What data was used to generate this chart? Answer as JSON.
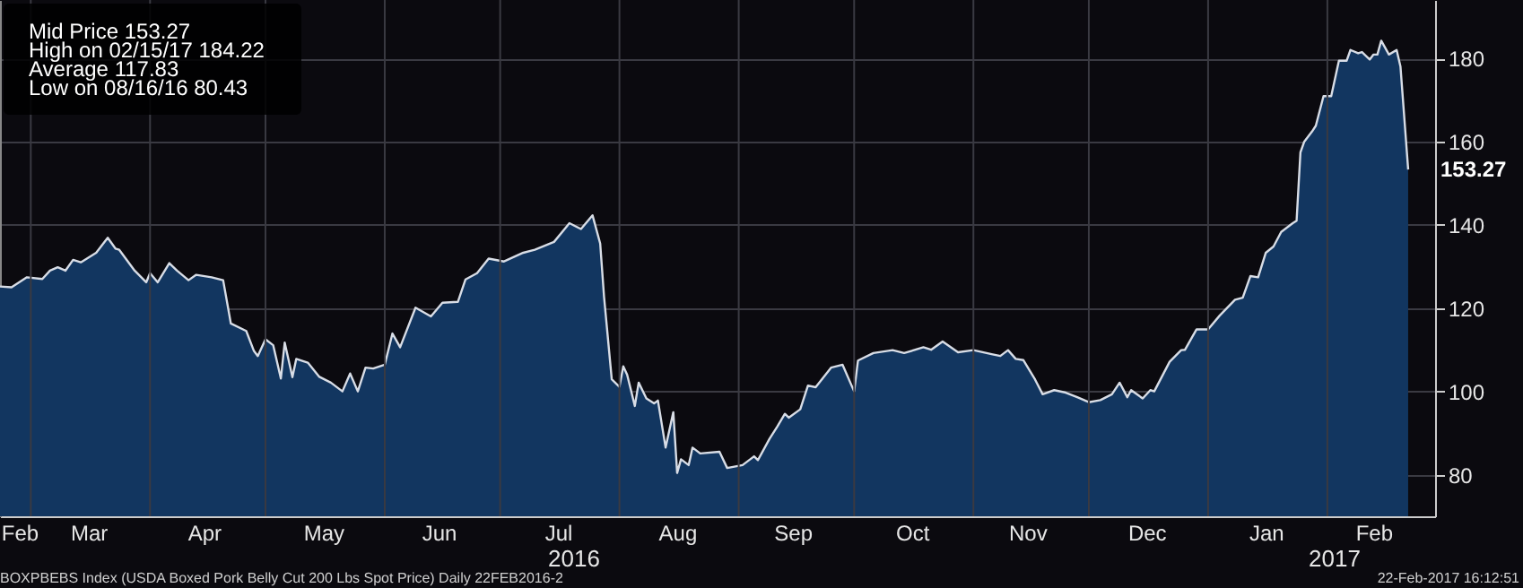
{
  "chart_data": {
    "type": "area",
    "x": [
      "2016-02-22",
      "2016-02-25",
      "2016-02-29",
      "2016-03-04",
      "2016-03-06",
      "2016-03-08",
      "2016-03-10",
      "2016-03-12",
      "2016-03-14",
      "2016-03-18",
      "2016-03-21",
      "2016-03-23",
      "2016-03-24",
      "2016-03-28",
      "2016-03-31",
      "2016-04-01",
      "2016-04-03",
      "2016-04-06",
      "2016-04-08",
      "2016-04-11",
      "2016-04-13",
      "2016-04-17",
      "2016-04-20",
      "2016-04-22",
      "2016-04-26",
      "2016-04-28",
      "2016-04-29",
      "2016-05-01",
      "2016-05-03",
      "2016-05-05",
      "2016-05-06",
      "2016-05-08",
      "2016-05-09",
      "2016-05-12",
      "2016-05-15",
      "2016-05-18",
      "2016-05-21",
      "2016-05-23",
      "2016-05-25",
      "2016-05-27",
      "2016-05-29",
      "2016-06-01",
      "2016-06-03",
      "2016-06-05",
      "2016-06-09",
      "2016-06-13",
      "2016-06-16",
      "2016-06-20",
      "2016-06-22",
      "2016-06-25",
      "2016-06-28",
      "2016-07-02",
      "2016-07-07",
      "2016-07-10",
      "2016-07-15",
      "2016-07-19",
      "2016-07-22",
      "2016-07-25",
      "2016-07-27",
      "2016-07-28",
      "2016-07-30",
      "2016-08-01",
      "2016-08-02",
      "2016-08-03",
      "2016-08-05",
      "2016-08-06",
      "2016-08-08",
      "2016-08-10",
      "2016-08-11",
      "2016-08-13",
      "2016-08-15",
      "2016-08-16",
      "2016-08-17",
      "2016-08-19",
      "2016-08-20",
      "2016-08-22",
      "2016-08-27",
      "2016-08-29",
      "2016-09-02",
      "2016-09-05",
      "2016-09-06",
      "2016-09-09",
      "2016-09-11",
      "2016-09-13",
      "2016-09-14",
      "2016-09-17",
      "2016-09-19",
      "2016-09-21",
      "2016-09-25",
      "2016-09-28",
      "2016-10-01",
      "2016-10-02",
      "2016-10-06",
      "2016-10-11",
      "2016-10-14",
      "2016-10-19",
      "2016-10-21",
      "2016-10-24",
      "2016-10-28",
      "2016-11-01",
      "2016-11-06",
      "2016-11-08",
      "2016-11-10",
      "2016-11-12",
      "2016-11-14",
      "2016-11-17",
      "2016-11-19",
      "2016-11-22",
      "2016-11-25",
      "2016-11-28",
      "2016-12-01",
      "2016-12-04",
      "2016-12-07",
      "2016-12-09",
      "2016-12-11",
      "2016-12-12",
      "2016-12-15",
      "2016-12-17",
      "2016-12-18",
      "2016-12-22",
      "2016-12-25",
      "2016-12-26",
      "2016-12-29",
      "2017-01-01",
      "2017-01-04",
      "2017-01-08",
      "2017-01-10",
      "2017-01-12",
      "2017-01-14",
      "2017-01-16",
      "2017-01-18",
      "2017-01-20",
      "2017-01-23",
      "2017-01-24",
      "2017-01-25",
      "2017-01-26",
      "2017-01-28",
      "2017-01-29",
      "2017-01-31",
      "2017-02-02",
      "2017-02-04",
      "2017-02-06",
      "2017-02-07",
      "2017-02-09",
      "2017-02-10",
      "2017-02-12",
      "2017-02-13",
      "2017-02-14",
      "2017-02-15",
      "2017-02-17",
      "2017-02-19",
      "2017-02-20",
      "2017-02-22"
    ],
    "series": [
      {
        "name": "Mid Price",
        "color": "#123660",
        "values": [
          125.2,
          125,
          127.4,
          127,
          129,
          129.8,
          129,
          131.6,
          131,
          133.3,
          136.9,
          134.3,
          134,
          129,
          126.2,
          128.4,
          126.2,
          130.8,
          129,
          126.7,
          128,
          127.4,
          126.7,
          116.3,
          114.5,
          109.7,
          108.5,
          112.5,
          111.1,
          103.1,
          111.7,
          103.4,
          107.8,
          106.9,
          103.5,
          102.1,
          100,
          104.3,
          100,
          105.7,
          105.5,
          106.4,
          113.9,
          110.6,
          120.1,
          118,
          121.3,
          121.5,
          126.9,
          128.4,
          131.9,
          131.2,
          133.3,
          134,
          135.9,
          140.4,
          139,
          142.3,
          135.5,
          122.7,
          102.9,
          101.1,
          106,
          104,
          96.5,
          102.1,
          98.3,
          97.1,
          97.8,
          86.5,
          95,
          80.43,
          83.7,
          82.3,
          86.5,
          85.1,
          85.5,
          81.6,
          82.3,
          84.4,
          83.5,
          88.6,
          91.5,
          94.6,
          93.7,
          95.7,
          101.4,
          101,
          105.7,
          106.4,
          100,
          107.4,
          109.2,
          109.9,
          109.2,
          110.6,
          110,
          112,
          109.4,
          109.9,
          108.9,
          108.5,
          109.9,
          107.8,
          107.5,
          102.9,
          99.3,
          100.3,
          99.7,
          98.6,
          97.4,
          97.9,
          99.3,
          102.1,
          98.6,
          100.3,
          98.3,
          100.3,
          100,
          107.1,
          109.9,
          110,
          114.9,
          114.9,
          118.2,
          122,
          122.5,
          127.7,
          127.4,
          133.3,
          134.8,
          138.3,
          140.4,
          141,
          157.4,
          160,
          162.4,
          163.8,
          170.9,
          170.9,
          179.4,
          179.4,
          182,
          181.2,
          181.5,
          179.7,
          180.9,
          180.9,
          184.22,
          180.9,
          182,
          178,
          153.27
        ]
      }
    ],
    "xlim": [
      "2016-02-22",
      "2017-03-01"
    ],
    "xticks": [
      {
        "value": "2016-02-27",
        "label": "Feb"
      },
      {
        "value": "2016-03-01",
        "label": null
      },
      {
        "value": "2016-03-16",
        "label": "Mar"
      },
      {
        "value": "2016-04-01",
        "label": null
      },
      {
        "value": "2016-04-15",
        "label": "Apr"
      },
      {
        "value": "2016-05-01",
        "label": null
      },
      {
        "value": "2016-05-16",
        "label": "May"
      },
      {
        "value": "2016-06-01",
        "label": null
      },
      {
        "value": "2016-06-15",
        "label": "Jun"
      },
      {
        "value": "2016-07-01",
        "label": null
      },
      {
        "value": "2016-07-16",
        "label": "Jul"
      },
      {
        "value": "2016-08-01",
        "label": null
      },
      {
        "value": "2016-08-16",
        "label": "Aug"
      },
      {
        "value": "2016-09-01",
        "label": null
      },
      {
        "value": "2016-09-15",
        "label": "Sep"
      },
      {
        "value": "2016-10-01",
        "label": null
      },
      {
        "value": "2016-10-16",
        "label": "Oct"
      },
      {
        "value": "2016-11-01",
        "label": null
      },
      {
        "value": "2016-11-15",
        "label": "Nov"
      },
      {
        "value": "2016-12-01",
        "label": null
      },
      {
        "value": "2016-12-16",
        "label": "Dec"
      },
      {
        "value": "2017-01-01",
        "label": null
      },
      {
        "value": "2017-01-16",
        "label": "Jan"
      },
      {
        "value": "2017-02-01",
        "label": null
      },
      {
        "value": "2017-02-13",
        "label": "Feb"
      }
    ],
    "ylim": [
      70,
      194
    ],
    "yticks": [
      80,
      100,
      120,
      140,
      160,
      180
    ],
    "grid": true,
    "annotations": [
      {
        "text": "153.27",
        "x": "2017-02-22",
        "y": 153.27
      },
      "153.27",
      "High on 02/15/17 184.22",
      "Average 117.83",
      "Low on 08/16/16 80.43",
      "2016",
      "2017",
      "BOXPBEBS Index (USDA Boxed Pork Belly Cut 200 Lbs Spot Price)  Daily 22FEB2016-2",
      "22-Feb-2017 16:12:51"
    ]
  }
}
